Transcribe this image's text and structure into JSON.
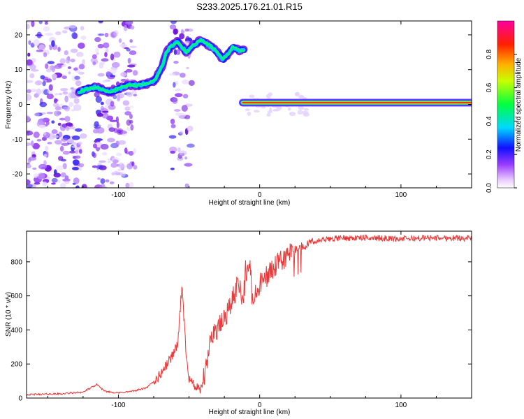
{
  "figure_title": "S233.2025.176.21.01.R15",
  "chart_data": [
    {
      "type": "heatmap",
      "title": "S233.2025.176.21.01.R15",
      "xlabel": "Height of straight line (km)",
      "ylabel": "Frequency (Hz)",
      "xlim": [
        -165,
        150
      ],
      "ylim": [
        -24,
        24
      ],
      "xticks": [
        "-100",
        "0",
        "100"
      ],
      "yticks": [
        "20",
        "10",
        "0",
        "-10",
        "-20"
      ],
      "colorbar": {
        "label": "Normalized spectral amplitude",
        "range": [
          0,
          1
        ],
        "ticks": [
          "0.0",
          "0.2",
          "0.4",
          "0.6",
          "0.8"
        ],
        "colormap": [
          "#ffffff",
          "#ff00ff",
          "#0000ff",
          "#00ffff",
          "#00ff00",
          "#ffff00",
          "#ff8000",
          "#ff0000",
          "#ff00a0"
        ]
      },
      "ridge": [
        {
          "x": -128,
          "y": 3.5
        },
        {
          "x": -122,
          "y": 4.5
        },
        {
          "x": -116,
          "y": 5
        },
        {
          "x": -110,
          "y": 4
        },
        {
          "x": -106,
          "y": 3.5
        },
        {
          "x": -100,
          "y": 4.5
        },
        {
          "x": -93,
          "y": 5.5
        },
        {
          "x": -86,
          "y": 5.5
        },
        {
          "x": -80,
          "y": 6
        },
        {
          "x": -74,
          "y": 7
        },
        {
          "x": -69,
          "y": 11
        },
        {
          "x": -66,
          "y": 15
        },
        {
          "x": -62,
          "y": 17
        },
        {
          "x": -58,
          "y": 18
        },
        {
          "x": -52,
          "y": 15
        },
        {
          "x": -47,
          "y": 17
        },
        {
          "x": -42,
          "y": 18.5
        },
        {
          "x": -38,
          "y": 17.5
        },
        {
          "x": -34,
          "y": 16.5
        },
        {
          "x": -30,
          "y": 15
        },
        {
          "x": -26,
          "y": 13
        },
        {
          "x": -22,
          "y": 14.5
        },
        {
          "x": -19,
          "y": 16.5
        },
        {
          "x": -15,
          "y": 15.5
        },
        {
          "x": -11,
          "y": 15.5
        }
      ],
      "line_segment": {
        "x_start": -12,
        "x_end": 150,
        "y": 0.5
      }
    },
    {
      "type": "line",
      "xlabel": "Height of straight line (km)",
      "ylabel": "SNR (10 * v/v)",
      "xlim": [
        -165,
        150
      ],
      "ylim": [
        0,
        980
      ],
      "xticks": [
        "-100",
        "0",
        "100"
      ],
      "yticks": [
        "800",
        "600",
        "400",
        "200",
        "0"
      ],
      "series": [
        {
          "color": "#e83a3a",
          "values": [
            {
              "x": -165,
              "y": 20
            },
            {
              "x": -140,
              "y": 25
            },
            {
              "x": -125,
              "y": 35
            },
            {
              "x": -115,
              "y": 80
            },
            {
              "x": -110,
              "y": 40
            },
            {
              "x": -100,
              "y": 30
            },
            {
              "x": -90,
              "y": 40
            },
            {
              "x": -80,
              "y": 60
            },
            {
              "x": -72,
              "y": 120
            },
            {
              "x": -67,
              "y": 180
            },
            {
              "x": -62,
              "y": 250
            },
            {
              "x": -58,
              "y": 320
            },
            {
              "x": -55,
              "y": 650
            },
            {
              "x": -52,
              "y": 260
            },
            {
              "x": -50,
              "y": 120
            },
            {
              "x": -46,
              "y": 70
            },
            {
              "x": -42,
              "y": 40
            },
            {
              "x": -38,
              "y": 160
            },
            {
              "x": -34,
              "y": 380
            },
            {
              "x": -28,
              "y": 420
            },
            {
              "x": -22,
              "y": 520
            },
            {
              "x": -18,
              "y": 600
            },
            {
              "x": -15,
              "y": 700
            },
            {
              "x": -12,
              "y": 580
            },
            {
              "x": -8,
              "y": 820
            },
            {
              "x": -5,
              "y": 560
            },
            {
              "x": 0,
              "y": 660
            },
            {
              "x": 5,
              "y": 720
            },
            {
              "x": 10,
              "y": 760
            },
            {
              "x": 15,
              "y": 800
            },
            {
              "x": 20,
              "y": 840
            },
            {
              "x": 30,
              "y": 890
            },
            {
              "x": 40,
              "y": 920
            },
            {
              "x": 50,
              "y": 935
            },
            {
              "x": 60,
              "y": 940
            },
            {
              "x": 80,
              "y": 940
            },
            {
              "x": 100,
              "y": 935
            },
            {
              "x": 120,
              "y": 940
            },
            {
              "x": 150,
              "y": 940
            }
          ]
        }
      ]
    }
  ]
}
